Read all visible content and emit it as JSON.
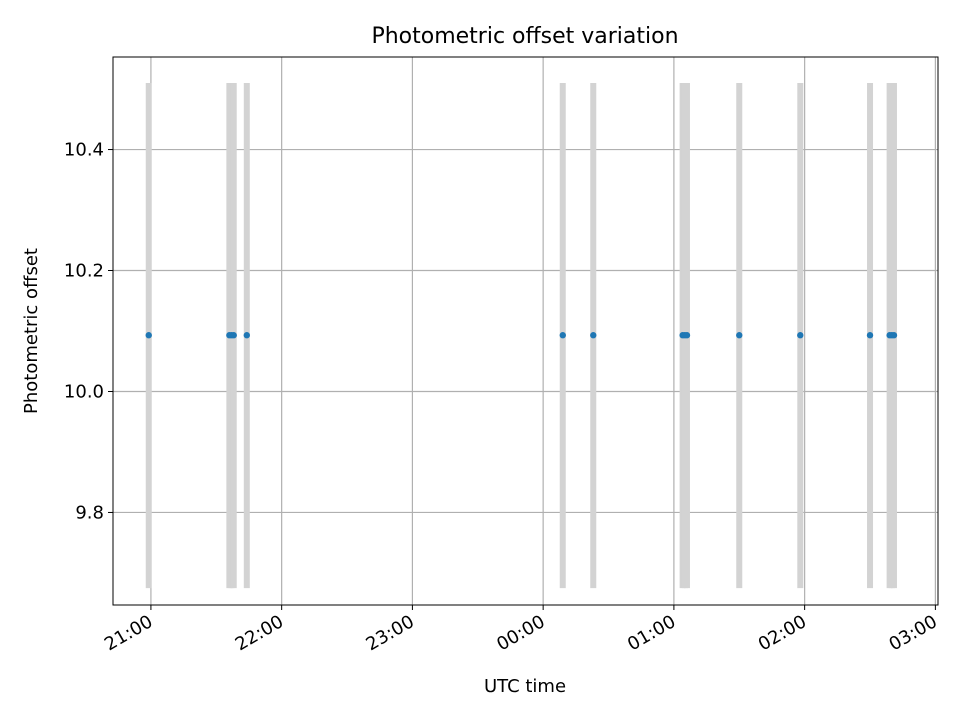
{
  "chart_data": {
    "type": "scatter",
    "title": "Photometric offset variation",
    "xlabel": "UTC time",
    "ylabel": "Photometric offset",
    "x_ticks": [
      "21:00",
      "22:00",
      "23:00",
      "00:00",
      "01:00",
      "02:00",
      "03:00"
    ],
    "x_tick_hours": [
      21,
      22,
      23,
      24,
      25,
      26,
      27
    ],
    "xlim_hours": [
      20.71,
      27.02
    ],
    "y_ticks": [
      "9.8",
      "10.0",
      "10.2",
      "10.4"
    ],
    "y_tick_values": [
      9.8,
      10.0,
      10.2,
      10.4
    ],
    "ylim": [
      9.647,
      10.553
    ],
    "grid": true,
    "series": [
      {
        "color": "#1f77b4",
        "points": [
          {
            "x": "20:59",
            "y": 10.093
          },
          {
            "x": "21:36",
            "y": 10.093
          },
          {
            "x": "21:37",
            "y": 10.093
          },
          {
            "x": "21:38",
            "y": 10.093
          },
          {
            "x": "21:44",
            "y": 10.093
          },
          {
            "x": "00:09",
            "y": 10.093
          },
          {
            "x": "00:23",
            "y": 10.093
          },
          {
            "x": "01:04",
            "y": 10.093
          },
          {
            "x": "01:05",
            "y": 10.093
          },
          {
            "x": "01:06",
            "y": 10.093
          },
          {
            "x": "01:30",
            "y": 10.093
          },
          {
            "x": "01:58",
            "y": 10.093
          },
          {
            "x": "02:30",
            "y": 10.093
          },
          {
            "x": "02:39",
            "y": 10.093
          },
          {
            "x": "02:40",
            "y": 10.093
          },
          {
            "x": "02:41",
            "y": 10.093
          }
        ]
      }
    ],
    "vertical_bands": {
      "color": "#d3d3d3",
      "y_range": [
        9.675,
        10.51
      ],
      "x": [
        "20:59",
        "21:36",
        "21:37",
        "21:38",
        "21:44",
        "00:09",
        "00:23",
        "01:04",
        "01:05",
        "01:06",
        "01:30",
        "01:58",
        "02:30",
        "02:39",
        "02:40",
        "02:41"
      ]
    }
  }
}
